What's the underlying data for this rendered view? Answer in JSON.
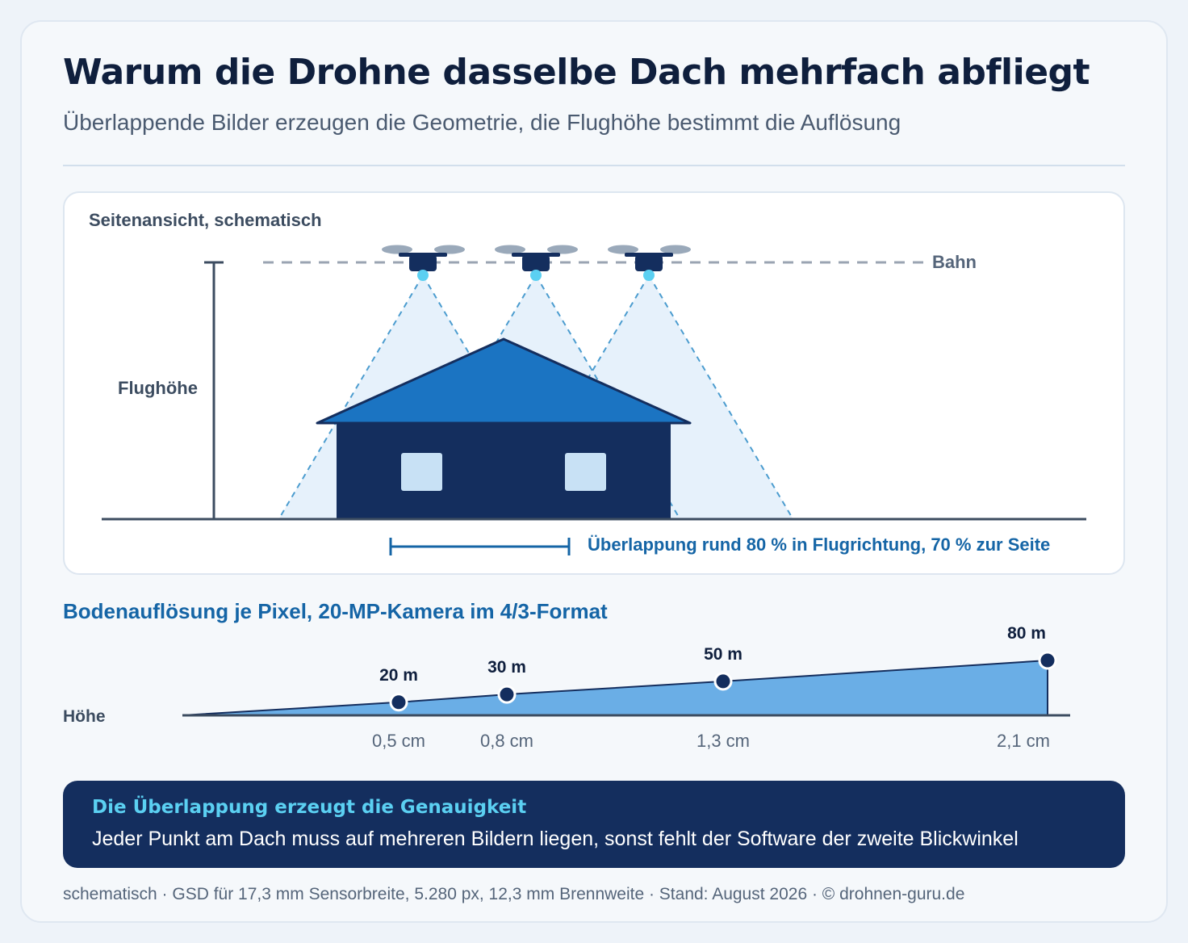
{
  "header": {
    "title": "Warum die Drohne dasselbe Dach mehrfach abfliegt",
    "subtitle": "Überlappende Bilder erzeugen die Geometrie, die Flughöhe bestimmt die Auflösung"
  },
  "side_view": {
    "label": "Seitenansicht, schematisch",
    "height_label": "Flughöhe",
    "path_label": "Bahn",
    "overlap_label": "Überlappung rund 80 % in Flugrichtung, 70 % zur Seite",
    "drone_count": 3
  },
  "gsd": {
    "title": "Bodenauflösung je Pixel, 20-MP-Kamera im 4/3-Format",
    "axis_label": "Höhe"
  },
  "chart_data": {
    "type": "area",
    "title": "Bodenauflösung je Pixel, 20-MP-Kamera im 4/3-Format",
    "ylabel": "Höhe",
    "points": [
      {
        "altitude": "20 m",
        "altitude_m": 20,
        "gsd": "0,5 cm",
        "gsd_cm": 0.5
      },
      {
        "altitude": "30 m",
        "altitude_m": 30,
        "gsd": "0,8 cm",
        "gsd_cm": 0.8
      },
      {
        "altitude": "50 m",
        "altitude_m": 50,
        "gsd": "1,3 cm",
        "gsd_cm": 1.3
      },
      {
        "altitude": "80 m",
        "altitude_m": 80,
        "gsd": "2,1 cm",
        "gsd_cm": 2.1
      }
    ],
    "xlim": [
      0,
      80
    ]
  },
  "callout": {
    "title": "Die Überlappung erzeugt die Genauigkeit",
    "text": "Jeder Punkt am Dach muss auf mehreren Bildern liegen, sonst fehlt der Software der zweite Blickwinkel"
  },
  "footer": "schematisch · GSD für 17,3 mm Sensorbreite, 5.280 px, 12,3 mm Brennweite · Stand: August 2026 · © drohnen-guru.de",
  "colors": {
    "navy": "#142e5e",
    "roof_blue": "#1b74c2",
    "accent_blue": "#1565a6",
    "cyan": "#5bd0f2",
    "area_fill": "#6aaee6",
    "window": "#c8e1f5",
    "cone_fill": "#e6f1fb"
  }
}
